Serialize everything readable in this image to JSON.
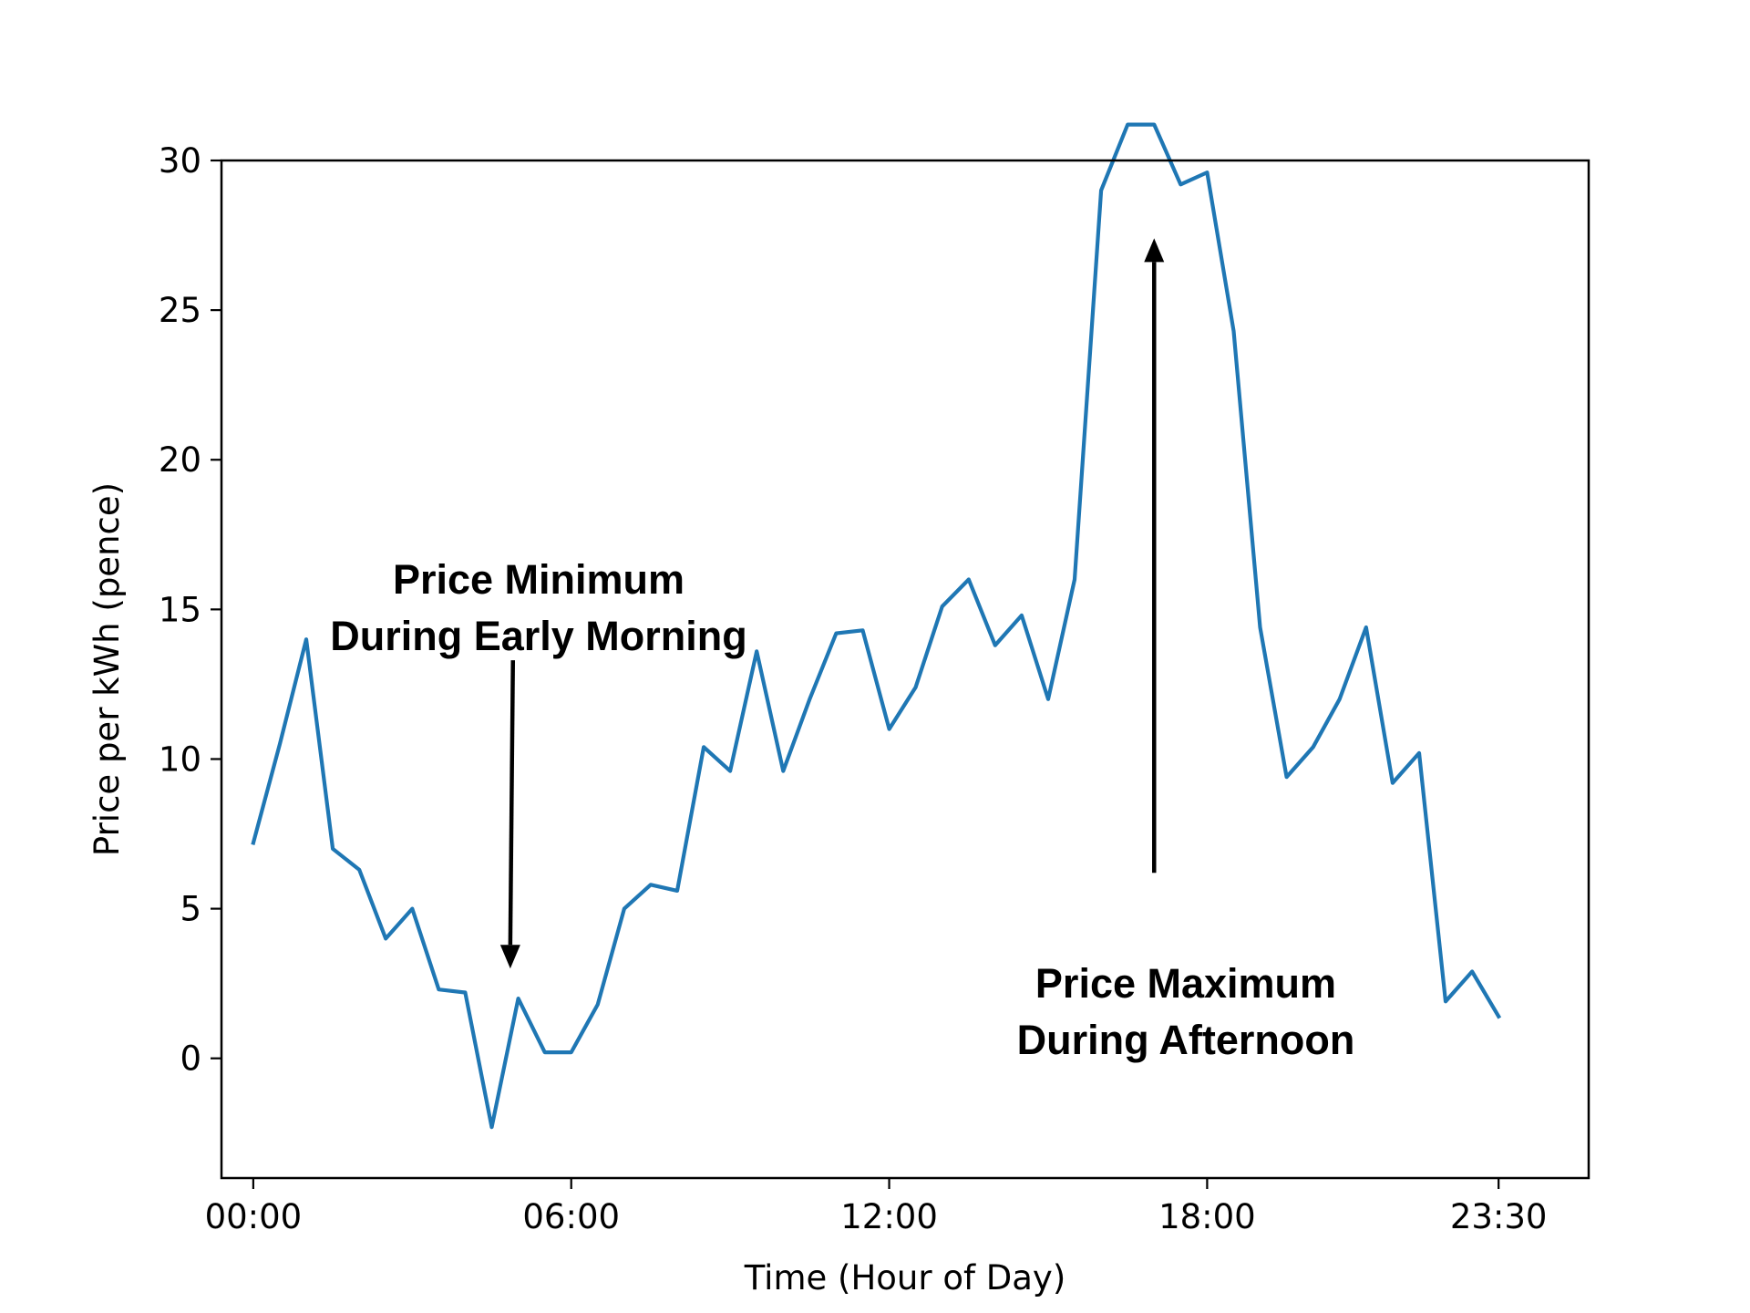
{
  "chart_data": {
    "type": "line",
    "xlabel": "Time (Hour of Day)",
    "ylabel": "Price per kWh (pence)",
    "xlim": [
      -0.6,
      25.2
    ],
    "ylim": [
      -4,
      30
    ],
    "x_ticks": [
      0,
      6,
      12,
      18,
      23.5
    ],
    "x_tick_labels": [
      "00:00",
      "06:00",
      "12:00",
      "18:00",
      "23:30"
    ],
    "y_ticks": [
      0,
      5,
      10,
      15,
      20,
      25,
      30
    ],
    "y_tick_labels": [
      "0",
      "5",
      "10",
      "15",
      "20",
      "25",
      "30"
    ],
    "grid": false,
    "series": [
      {
        "color": "#1f77b4",
        "x": [
          0,
          0.5,
          1,
          1.5,
          2,
          2.5,
          3,
          3.5,
          4,
          4.5,
          5,
          5.5,
          6,
          6.5,
          7,
          7.5,
          8,
          8.5,
          9,
          9.5,
          10,
          10.5,
          11,
          11.5,
          12,
          12.5,
          13,
          13.5,
          14,
          14.5,
          15,
          15.5,
          16,
          16.5,
          17,
          17.5,
          18,
          18.5,
          19,
          19.5,
          20,
          20.5,
          21,
          21.5,
          22,
          22.5,
          23,
          23.5
        ],
        "values": [
          7.2,
          10.5,
          14.0,
          7.0,
          6.3,
          4.0,
          5.0,
          2.3,
          2.2,
          -2.3,
          2.0,
          0.2,
          0.2,
          1.8,
          5.0,
          5.8,
          5.6,
          10.4,
          9.6,
          13.6,
          9.6,
          12.0,
          14.2,
          14.3,
          11.0,
          12.4,
          15.1,
          16.0,
          13.8,
          14.8,
          12.0,
          16.0,
          29.0,
          31.2,
          31.2,
          29.2,
          29.6,
          24.3,
          14.4,
          9.4,
          10.4,
          12.0,
          14.4,
          9.2,
          10.2,
          1.9,
          2.9,
          1.4
        ]
      }
    ],
    "annotations": [
      {
        "lines": [
          "Price Minimum",
          "During Early Morning"
        ],
        "arrow_direction": "down",
        "arrow_tip": [
          4.85,
          3.0
        ]
      },
      {
        "lines": [
          "Price Maximum",
          "During Afternoon"
        ],
        "arrow_direction": "up",
        "arrow_tip": [
          17.0,
          27.4
        ]
      }
    ]
  }
}
